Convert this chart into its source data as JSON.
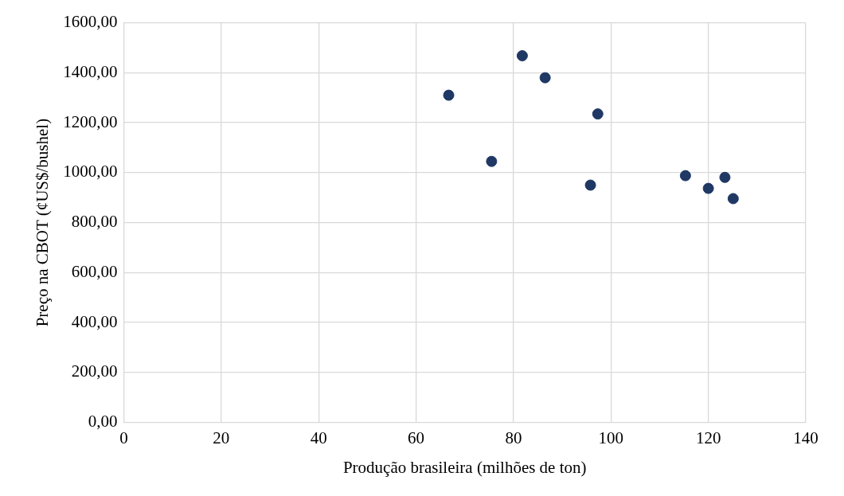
{
  "chart_data": {
    "type": "scatter",
    "xlabel": "Produção brasileira (milhões de ton)",
    "ylabel": "Preço na CBOT (¢US$/bushel)",
    "x": [
      66.7,
      75.5,
      81.8,
      86.5,
      97.3,
      95.8,
      115.3,
      120.0,
      123.4,
      125.1
    ],
    "series": [
      {
        "color": "#1f3864",
        "values": [
          1310,
          1045,
          1468,
          1380,
          1235,
          950,
          988,
          937,
          981,
          896
        ]
      }
    ],
    "xlim": [
      0,
      140
    ],
    "xticks": [
      0,
      20,
      40,
      60,
      80,
      100,
      120,
      140
    ],
    "ylim": [
      0,
      1600
    ],
    "yticks": [
      {
        "value": 0,
        "label": "0,00"
      },
      {
        "value": 200,
        "label": "200,00"
      },
      {
        "value": 400,
        "label": "400,00"
      },
      {
        "value": 600,
        "label": "600,00"
      },
      {
        "value": 800,
        "label": "800,00"
      },
      {
        "value": 1000,
        "label": "1000,00"
      },
      {
        "value": 1200,
        "label": "1200,00"
      },
      {
        "value": 1400,
        "label": "1400,00"
      },
      {
        "value": 1600,
        "label": "1600,00"
      }
    ],
    "grid": true,
    "marker": "circle"
  }
}
